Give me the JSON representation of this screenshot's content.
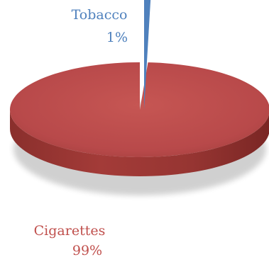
{
  "chart_data": {
    "type": "pie",
    "style": "3d",
    "slices": [
      {
        "label": "Tobacco",
        "value": 1,
        "value_label": "1%",
        "color": "#4f81bd",
        "exploded": true
      },
      {
        "label": "Cigarettes",
        "value": 99,
        "value_label": "99%",
        "color": "#c0504d",
        "exploded": false
      }
    ],
    "title": "",
    "legend": "none"
  }
}
